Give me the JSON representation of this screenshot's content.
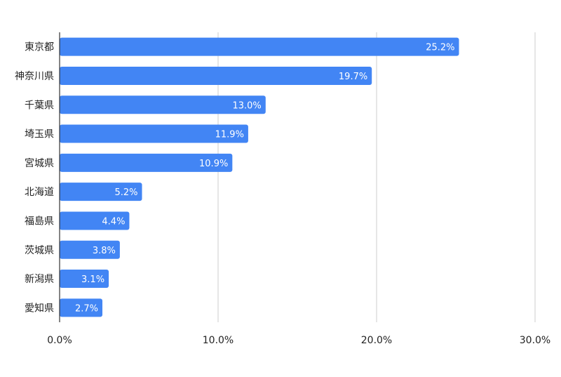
{
  "chart_data": {
    "type": "bar",
    "orientation": "horizontal",
    "categories": [
      "東京都",
      "神奈川県",
      "千葉県",
      "埼玉県",
      "宮城県",
      "北海道",
      "福島県",
      "茨城県",
      "新潟県",
      "愛知県"
    ],
    "values": [
      25.2,
      19.7,
      13.0,
      11.9,
      10.9,
      5.2,
      4.4,
      3.8,
      3.1,
      2.7
    ],
    "data_labels": [
      "25.2%",
      "19.7%",
      "13.0%",
      "11.9%",
      "10.9%",
      "5.2%",
      "4.4%",
      "3.8%",
      "3.1%",
      "2.7%"
    ],
    "x_ticks": [
      0,
      10,
      20,
      30
    ],
    "x_tick_labels": [
      "0.0%",
      "10.0%",
      "20.0%",
      "30.0%"
    ],
    "xlim": [
      0,
      30
    ],
    "title": "",
    "xlabel": "",
    "ylabel": "",
    "grid": "vertical",
    "legend": "none",
    "bar_color": "#4285f4",
    "grid_color": "#cccccc",
    "axis_color": "#333333",
    "data_label_color": "#ffffff",
    "text_color": "#222222"
  }
}
